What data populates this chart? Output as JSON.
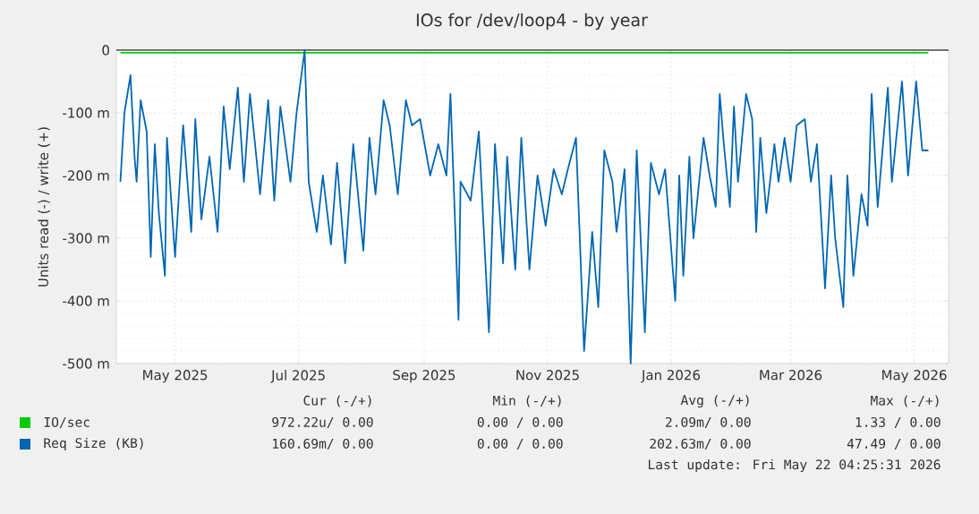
{
  "chart_data": {
    "type": "line",
    "title": "IOs for /dev/loop4 - by year",
    "ylabel": "Units read (-) / write (+)",
    "x": [
      "2025-04-04",
      "2025-04-06",
      "2025-04-09",
      "2025-04-11",
      "2025-04-12",
      "2025-04-14",
      "2025-04-17",
      "2025-04-19",
      "2025-04-21",
      "2025-04-23",
      "2025-04-26",
      "2025-04-27",
      "2025-05-01",
      "2025-05-05",
      "2025-05-09",
      "2025-05-11",
      "2025-05-14",
      "2025-05-18",
      "2025-05-22",
      "2025-05-25",
      "2025-05-28",
      "2025-06-01",
      "2025-06-04",
      "2025-06-07",
      "2025-06-12",
      "2025-06-16",
      "2025-06-19",
      "2025-06-22",
      "2025-06-27",
      "2025-06-30",
      "2025-07-04",
      "2025-07-06",
      "2025-07-10",
      "2025-07-13",
      "2025-07-17",
      "2025-07-20",
      "2025-07-24",
      "2025-07-28",
      "2025-08-02",
      "2025-08-05",
      "2025-08-08",
      "2025-08-12",
      "2025-08-15",
      "2025-08-19",
      "2025-08-23",
      "2025-08-26",
      "2025-08-30",
      "2025-09-04",
      "2025-09-08",
      "2025-09-12",
      "2025-09-14",
      "2025-09-18",
      "2025-09-19",
      "2025-09-24",
      "2025-09-28",
      "2025-10-03",
      "2025-10-06",
      "2025-10-10",
      "2025-10-12",
      "2025-10-16",
      "2025-10-19",
      "2025-10-23",
      "2025-10-27",
      "2025-10-31",
      "2025-11-04",
      "2025-11-08",
      "2025-11-11",
      "2025-11-15",
      "2025-11-19",
      "2025-11-23",
      "2025-11-26",
      "2025-11-29",
      "2025-12-03",
      "2025-12-05",
      "2025-12-09",
      "2025-12-12",
      "2025-12-15",
      "2025-12-19",
      "2025-12-22",
      "2025-12-26",
      "2025-12-29",
      "2026-01-03",
      "2026-01-05",
      "2026-01-07",
      "2026-01-10",
      "2026-01-12",
      "2026-01-17",
      "2026-01-20",
      "2026-01-23",
      "2026-01-25",
      "2026-01-27",
      "2026-01-30",
      "2026-02-01",
      "2026-02-03",
      "2026-02-07",
      "2026-02-10",
      "2026-02-12",
      "2026-02-14",
      "2026-02-17",
      "2026-02-21",
      "2026-02-23",
      "2026-02-26",
      "2026-03-01",
      "2026-03-04",
      "2026-03-08",
      "2026-03-11",
      "2026-03-14",
      "2026-03-18",
      "2026-03-21",
      "2026-03-23",
      "2026-03-27",
      "2026-03-29",
      "2026-04-01",
      "2026-04-05",
      "2026-04-08",
      "2026-04-10",
      "2026-04-13",
      "2026-04-18",
      "2026-04-20",
      "2026-04-25",
      "2026-04-28",
      "2026-05-02",
      "2026-05-05",
      "2026-05-08"
    ],
    "series": [
      {
        "name": "IO/sec",
        "color": "#00cc00",
        "x": [
          "2025-04-04",
          "2026-05-08"
        ],
        "values": [
          -4,
          -4
        ]
      },
      {
        "name": "Req Size (KB)",
        "color": "#0066b3",
        "values": [
          -210,
          -100,
          -40,
          -170,
          -210,
          -80,
          -130,
          -330,
          -150,
          -260,
          -360,
          -140,
          -330,
          -120,
          -290,
          -110,
          -270,
          -170,
          -290,
          -90,
          -190,
          -60,
          -210,
          -70,
          -230,
          -80,
          -240,
          -90,
          -210,
          -100,
          0,
          -210,
          -290,
          -200,
          -310,
          -180,
          -340,
          -150,
          -320,
          -140,
          -230,
          -80,
          -120,
          -230,
          -80,
          -120,
          -110,
          -200,
          -150,
          -200,
          -70,
          -430,
          -210,
          -240,
          -130,
          -450,
          -150,
          -340,
          -170,
          -350,
          -140,
          -350,
          -200,
          -280,
          -190,
          -230,
          -190,
          -140,
          -480,
          -290,
          -410,
          -160,
          -210,
          -290,
          -190,
          -500,
          -160,
          -450,
          -180,
          -230,
          -190,
          -400,
          -200,
          -360,
          -170,
          -300,
          -140,
          -200,
          -250,
          -70,
          -150,
          -250,
          -90,
          -210,
          -70,
          -110,
          -290,
          -140,
          -260,
          -150,
          -210,
          -140,
          -210,
          -120,
          -110,
          -210,
          -150,
          -380,
          -200,
          -300,
          -410,
          -200,
          -360,
          -230,
          -280,
          -70,
          -250,
          -60,
          -210,
          -50,
          -200,
          -50,
          -160,
          -160
        ]
      }
    ],
    "xlim": [
      "2025-04-02",
      "2026-05-18"
    ],
    "xticks": [
      {
        "value": "2025-05-01",
        "label": "May 2025"
      },
      {
        "value": "2025-07-01",
        "label": "Jul 2025"
      },
      {
        "value": "2025-09-01",
        "label": "Sep 2025"
      },
      {
        "value": "2025-11-01",
        "label": "Nov 2025"
      },
      {
        "value": "2026-01-01",
        "label": "Jan 2026"
      },
      {
        "value": "2026-03-01",
        "label": "Mar 2026"
      },
      {
        "value": "2026-05-01",
        "label": "May 2026"
      }
    ],
    "ylim": [
      -500,
      0
    ],
    "yticks": [
      {
        "value": -500,
        "label": "-500 m"
      },
      {
        "value": -400,
        "label": "-400 m"
      },
      {
        "value": -300,
        "label": "-300 m"
      },
      {
        "value": -200,
        "label": "-200 m"
      },
      {
        "value": -100,
        "label": "-100 m"
      },
      0
    ],
    "grid": true,
    "legend": "bottom",
    "marker": "none",
    "line_style": "solid",
    "annotations": [
      "Cur (-/+)",
      "Min (-/+)",
      "Avg (-/+)",
      "Max (-/+)",
      "972.22u/  0.00",
      "0.00 /  0.00",
      "2.09m/  0.00",
      "1.33 /  0.00",
      "160.69m/  0.00",
      "0.00 /  0.00",
      "202.63m/  0.00",
      "47.49 /  0.00",
      "Last update: Fri May 22 04:25:31 2026"
    ]
  }
}
